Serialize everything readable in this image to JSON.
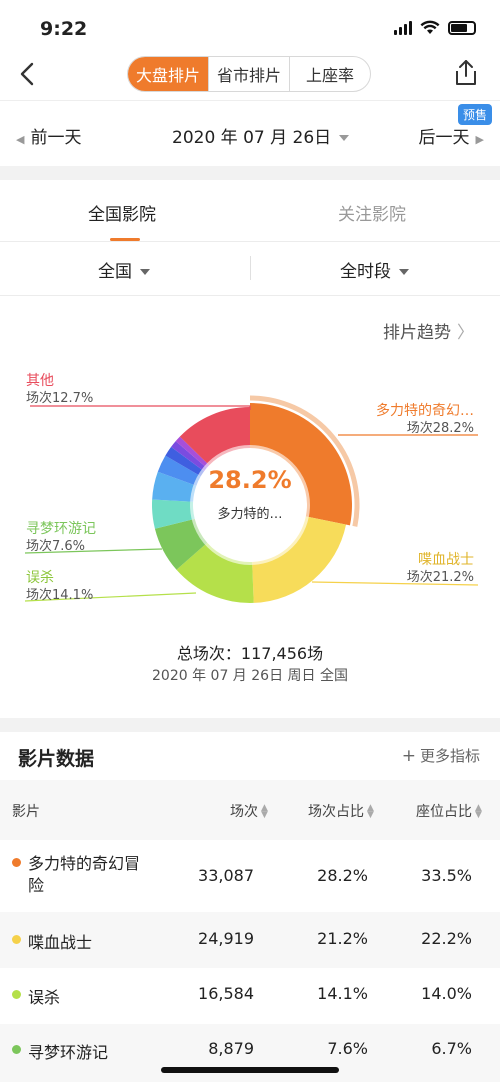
{
  "status": {
    "time": "9:22"
  },
  "nav": {
    "segments": [
      "大盘排片",
      "省市排片",
      "上座率"
    ]
  },
  "date_bar": {
    "prev": "前一天",
    "date": "2020 年 07 月 26日",
    "next": "后一天",
    "presale": "预售"
  },
  "tabs": [
    "全国影院",
    "关注影院"
  ],
  "filters": {
    "region": "全国",
    "time_range": "全时段"
  },
  "trend_link": "排片趋势",
  "donut": {
    "center_percent": "28.2%",
    "center_title": "多力特的…",
    "labels": [
      {
        "name": "其他",
        "share": "场次12.7%",
        "color": "#e84c5c"
      },
      {
        "name": "多力特的奇幻…",
        "share": "场次28.2%",
        "color": "#ef7b2c"
      },
      {
        "name": "寻梦环游记",
        "share": "场次7.6%",
        "color": "#7cc65b"
      },
      {
        "name": "喋血战士",
        "share": "场次21.2%",
        "color": "#f5d14a"
      },
      {
        "name": "误杀",
        "share": "场次14.1%",
        "color": "#b5e04a"
      }
    ]
  },
  "chart_data": {
    "type": "pie",
    "title": "",
    "series": [
      {
        "name": "多力特的奇幻冒险",
        "value": 28.2,
        "color": "#ef7b2c"
      },
      {
        "name": "喋血战士",
        "value": 21.2,
        "color": "#f7dc5a"
      },
      {
        "name": "误杀",
        "value": 14.1,
        "color": "#b5e04a"
      },
      {
        "name": "寻梦环游记",
        "value": 7.6,
        "color": "#7cc65b"
      },
      {
        "name": "",
        "value": 4.8,
        "color": "#6fdcc4"
      },
      {
        "name": "",
        "value": 4.6,
        "color": "#5ab0f0"
      },
      {
        "name": "",
        "value": 2.9,
        "color": "#4d8ef0"
      },
      {
        "name": "",
        "value": 1.7,
        "color": "#3f5fe0"
      },
      {
        "name": "",
        "value": 1.2,
        "color": "#7a4ce0"
      },
      {
        "name": "",
        "value": 1.0,
        "color": "#a74fd9"
      },
      {
        "name": "其他",
        "value": 12.7,
        "color": "#e84c5c"
      }
    ]
  },
  "summary": {
    "total": "总场次：117,456场",
    "date_line": "2020 年 07 月 26日 周日 全国"
  },
  "table": {
    "title": "影片数据",
    "more": "更多指标",
    "headers": [
      "影片",
      "场次",
      "场次占比",
      "座位占比"
    ],
    "rows": [
      {
        "film": "多力特的奇幻冒",
        "film2": "险",
        "shows": "33,087",
        "show_share": "28.2%",
        "seat_share": "33.5%",
        "color": "#ef7b2c"
      },
      {
        "film": "喋血战士",
        "film2": "",
        "shows": "24,919",
        "show_share": "21.2%",
        "seat_share": "22.2%",
        "color": "#f5d14a"
      },
      {
        "film": "误杀",
        "film2": "",
        "shows": "16,584",
        "show_share": "14.1%",
        "seat_share": "14.0%",
        "color": "#b5e04a"
      },
      {
        "film": "寻梦环游记",
        "film2": "",
        "shows": "8,879",
        "show_share": "7.6%",
        "seat_share": "6.7%",
        "color": "#7cc65b"
      }
    ]
  }
}
